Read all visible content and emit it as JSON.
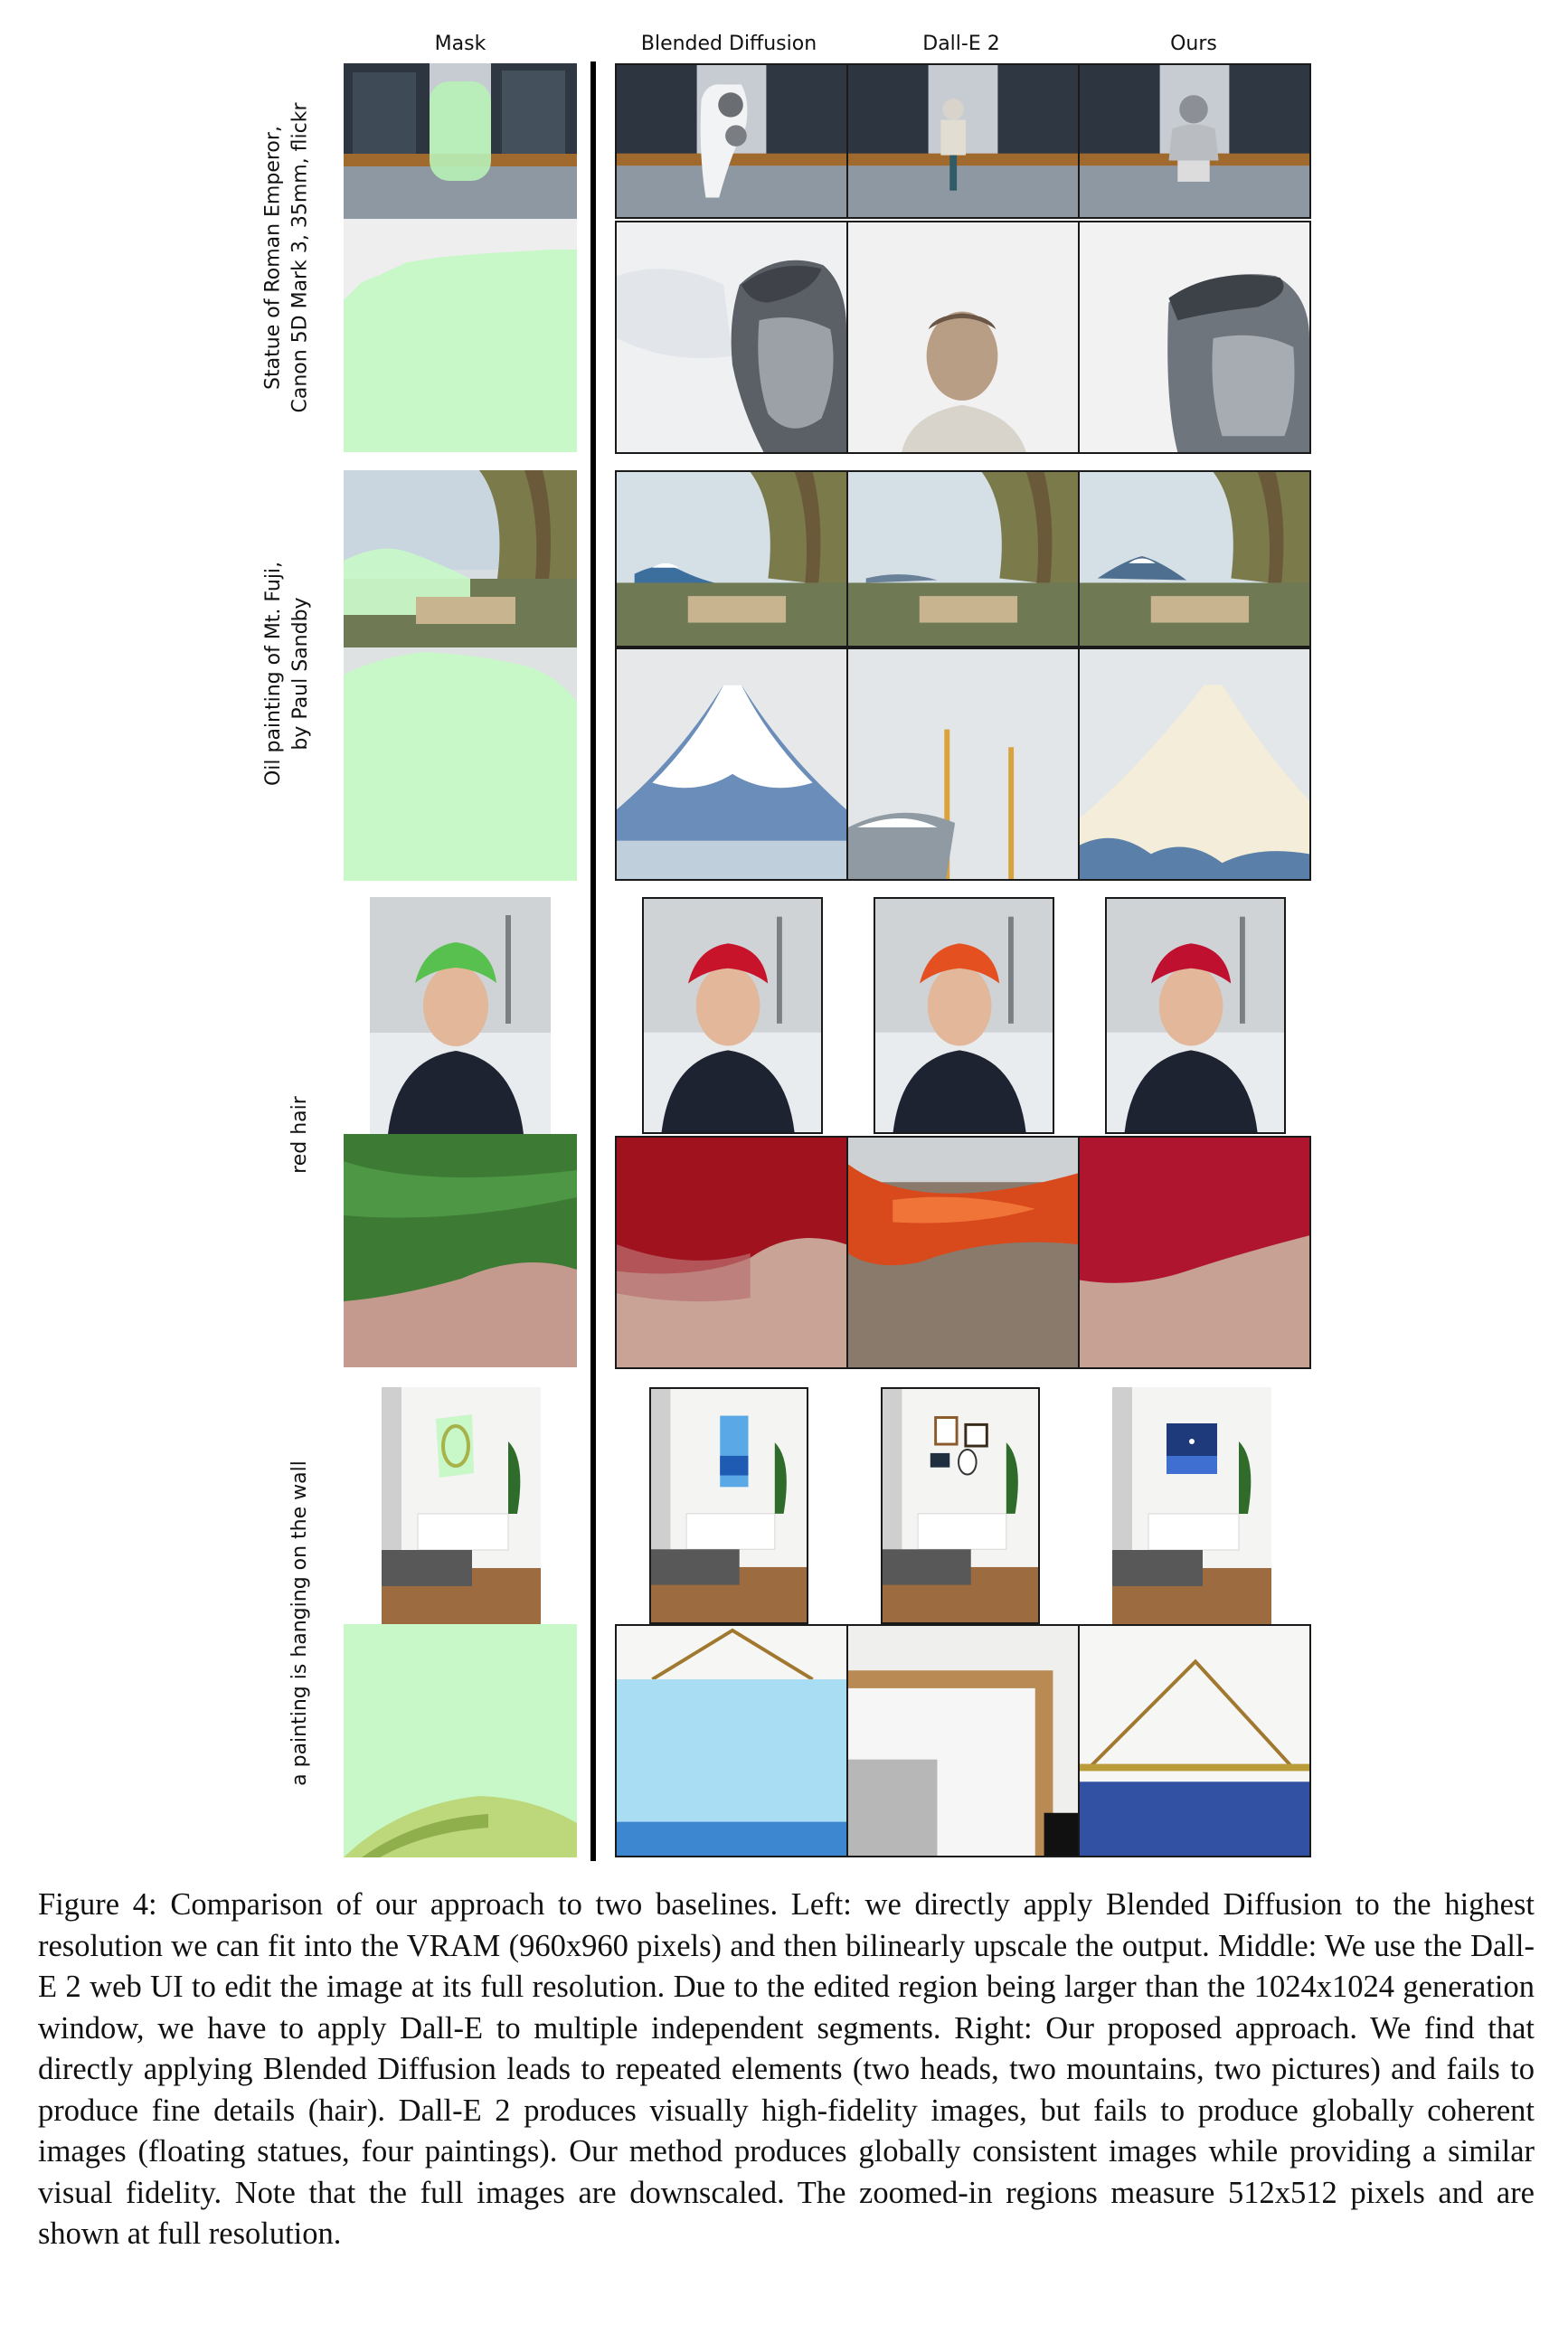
{
  "figure": {
    "columns": [
      "Mask",
      "Blended Diffusion",
      "Dall-E 2",
      "Ours"
    ],
    "rows": [
      {
        "prompt_line1": "Statue of Roman Emperor,",
        "prompt_line2": "Canon 5D Mark 3, 35mm, flickr"
      },
      {
        "prompt_line1": "Oil painting of Mt. Fuji,",
        "prompt_line2": "by Paul Sandby"
      },
      {
        "prompt_line1": "red hair",
        "prompt_line2": ""
      },
      {
        "prompt_line1": "a painting is hanging on the wall",
        "prompt_line2": ""
      }
    ],
    "caption": "Figure 4: Comparison of our approach to two baselines. Left: we directly apply Blended Diffusion to the highest resolution we can fit into the VRAM (960x960 pixels) and then bilinearly upscale the output. Middle: We use the Dall-E 2 web UI to edit the image at its full resolution. Due to the edited region being larger than the 1024x1024 generation window, we have to apply Dall-E to multiple independent segments. Right: Our proposed approach. We find that directly applying Blended Diffusion leads to repeated elements (two heads, two mountains, two pictures) and fails to produce fine details (hair). Dall-E 2 produces visually high-fidelity images, but fails to produce globally coherent images (floating statues, four paintings). Our method produces globally consistent images while providing a similar visual fidelity. Note that the full images are downscaled. The zoomed-in regions measure 512x512 pixels and are shown at full resolution."
  },
  "colors": {
    "mask_green": "#c8f7c8",
    "divider": "#000000",
    "frame": "#1a1a1a"
  }
}
